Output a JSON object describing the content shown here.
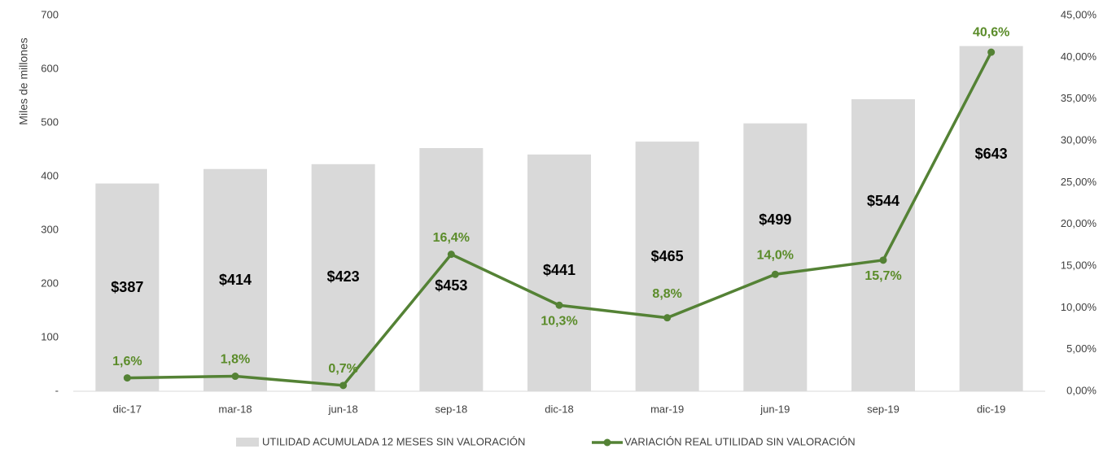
{
  "chart_data": {
    "type": "bar",
    "y_label": "Miles de millones",
    "categories": [
      "dic-17",
      "mar-18",
      "jun-18",
      "sep-18",
      "dic-18",
      "mar-19",
      "jun-19",
      "sep-19",
      "dic-19"
    ],
    "series": [
      {
        "name": "UTILIDAD ACUMULADA 12 MESES SIN VALORACIÓN",
        "type": "bar",
        "color": "#d9d9d9",
        "values": [
          387,
          414,
          423,
          453,
          441,
          465,
          499,
          544,
          643
        ],
        "value_labels": [
          "$387",
          "$414",
          "$423",
          "$453",
          "$441",
          "$465",
          "$499",
          "$544",
          "$643"
        ]
      },
      {
        "name": "VARIACIÓN REAL UTILIDAD SIN VALORACIÓN",
        "type": "line",
        "axis": "y2",
        "color": "#548235",
        "values": [
          1.6,
          1.8,
          0.7,
          16.4,
          10.3,
          8.8,
          14.0,
          15.7,
          40.6
        ],
        "value_labels": [
          "1,6%",
          "1,8%",
          "0,7%",
          "16,4%",
          "10,3%",
          "8,8%",
          "14,0%",
          "15,7%",
          "40,6%"
        ]
      }
    ],
    "ylim": [
      0,
      700
    ],
    "yticks": [
      {
        "value": 0,
        "label": "-"
      },
      100,
      200,
      300,
      400,
      500,
      600,
      700
    ],
    "y2lim": [
      0,
      45
    ],
    "y2ticks": [
      {
        "value": 0,
        "label": "0,00%"
      },
      {
        "value": 5,
        "label": "5,00%"
      },
      {
        "value": 10,
        "label": "10,00%"
      },
      {
        "value": 15,
        "label": "15,00%"
      },
      {
        "value": 20,
        "label": "20,00%"
      },
      {
        "value": 25,
        "label": "25,00%"
      },
      {
        "value": 30,
        "label": "30,00%"
      },
      {
        "value": 35,
        "label": "35,00%"
      },
      {
        "value": 40,
        "label": "40,00%"
      },
      {
        "value": 45,
        "label": "45,00%"
      }
    ],
    "legend": "bottom"
  }
}
